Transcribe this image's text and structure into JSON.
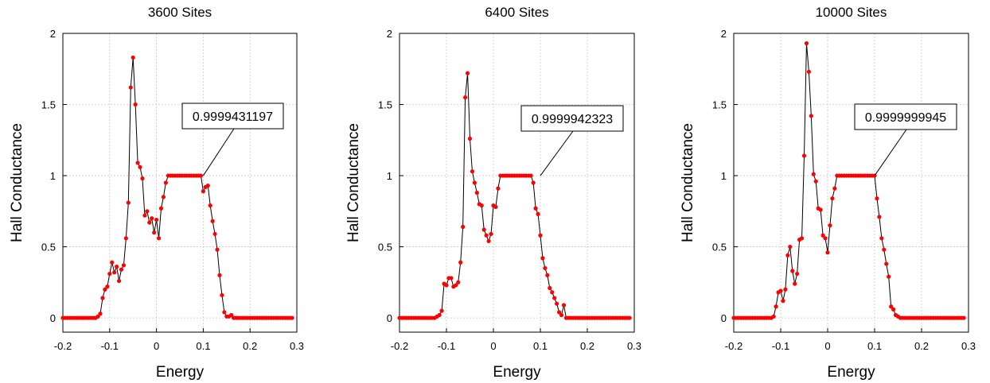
{
  "chart_data": [
    {
      "type": "line",
      "title": "3600 Sites",
      "xlabel": "Energy",
      "ylabel": "Hall Conductance",
      "xlim": [
        -0.2,
        0.3
      ],
      "ylim": [
        -0.1,
        2
      ],
      "xticks": [
        "-0.2",
        "-0.1",
        "0",
        "0.1",
        "0.2",
        "0.3"
      ],
      "yticks": [
        "0",
        "0.5",
        "1",
        "1.5",
        "2"
      ],
      "grid": true,
      "annotation": {
        "text": "0.9999431197",
        "x": 0.1,
        "y": 1.0
      },
      "series": [
        {
          "color": "#ff0000",
          "x": [
            -0.2,
            -0.195,
            -0.19,
            -0.185,
            -0.18,
            -0.175,
            -0.17,
            -0.165,
            -0.16,
            -0.155,
            -0.15,
            -0.145,
            -0.14,
            -0.135,
            -0.13,
            -0.125,
            -0.12,
            -0.115,
            -0.11,
            -0.105,
            -0.1,
            -0.095,
            -0.09,
            -0.085,
            -0.08,
            -0.075,
            -0.07,
            -0.065,
            -0.06,
            -0.055,
            -0.05,
            -0.045,
            -0.04,
            -0.035,
            -0.03,
            -0.025,
            -0.02,
            -0.015,
            -0.01,
            -0.005,
            0,
            0.005,
            0.01,
            0.015,
            0.02,
            0.025,
            0.03,
            0.035,
            0.04,
            0.045,
            0.05,
            0.055,
            0.06,
            0.065,
            0.07,
            0.075,
            0.08,
            0.085,
            0.09,
            0.095,
            0.1,
            0.105,
            0.11,
            0.115,
            0.12,
            0.125,
            0.13,
            0.135,
            0.14,
            0.145,
            0.15,
            0.155,
            0.16,
            0.165,
            0.17,
            0.175,
            0.18,
            0.185,
            0.19,
            0.195,
            0.2,
            0.205,
            0.21,
            0.215,
            0.22,
            0.225,
            0.23,
            0.235,
            0.24,
            0.245,
            0.25,
            0.255,
            0.26,
            0.265,
            0.27,
            0.275,
            0.28,
            0.285,
            0.29
          ],
          "y": [
            0,
            0,
            0,
            0,
            0,
            0,
            0,
            0,
            0,
            0,
            0,
            0,
            0,
            0,
            0,
            0.01,
            0.03,
            0.14,
            0.2,
            0.22,
            0.31,
            0.39,
            0.32,
            0.36,
            0.26,
            0.34,
            0.37,
            0.56,
            0.81,
            1.62,
            1.83,
            1.5,
            1.09,
            1.06,
            0.98,
            0.72,
            0.75,
            0.67,
            0.7,
            0.6,
            0.69,
            0.56,
            0.77,
            0.85,
            0.95,
            1,
            1,
            1,
            1,
            1,
            1,
            1,
            1,
            1,
            1,
            1,
            1,
            1,
            1,
            1,
            0.89,
            0.92,
            0.93,
            0.79,
            0.68,
            0.59,
            0.48,
            0.3,
            0.16,
            0.04,
            0.01,
            0.01,
            0.02,
            0,
            0,
            0,
            0,
            0,
            0,
            0,
            0,
            0,
            0,
            0,
            0,
            0,
            0,
            0,
            0,
            0,
            0,
            0,
            0,
            0,
            0,
            0,
            0,
            0,
            0
          ]
        }
      ]
    },
    {
      "type": "line",
      "title": "6400 Sites",
      "xlabel": "Energy",
      "ylabel": "Hall Conductance",
      "xlim": [
        -0.2,
        0.3
      ],
      "ylim": [
        -0.1,
        2
      ],
      "xticks": [
        "-0.2",
        "-0.1",
        "0",
        "0.1",
        "0.2",
        "0.3"
      ],
      "yticks": [
        "0",
        "0.5",
        "1",
        "1.5",
        "2"
      ],
      "grid": true,
      "annotation": {
        "text": "0.9999942323",
        "x": 0.1,
        "y": 1.0
      },
      "series": [
        {
          "color": "#ff0000",
          "x": [
            -0.2,
            -0.195,
            -0.19,
            -0.185,
            -0.18,
            -0.175,
            -0.17,
            -0.165,
            -0.16,
            -0.155,
            -0.15,
            -0.145,
            -0.14,
            -0.135,
            -0.13,
            -0.125,
            -0.12,
            -0.115,
            -0.11,
            -0.105,
            -0.1,
            -0.095,
            -0.09,
            -0.085,
            -0.08,
            -0.075,
            -0.07,
            -0.065,
            -0.06,
            -0.055,
            -0.05,
            -0.045,
            -0.04,
            -0.035,
            -0.03,
            -0.025,
            -0.02,
            -0.015,
            -0.01,
            -0.005,
            0,
            0.005,
            0.01,
            0.015,
            0.02,
            0.025,
            0.03,
            0.035,
            0.04,
            0.045,
            0.05,
            0.055,
            0.06,
            0.065,
            0.07,
            0.075,
            0.08,
            0.085,
            0.09,
            0.095,
            0.1,
            0.105,
            0.11,
            0.115,
            0.12,
            0.125,
            0.13,
            0.135,
            0.14,
            0.145,
            0.15,
            0.155,
            0.16,
            0.165,
            0.17,
            0.175,
            0.18,
            0.185,
            0.19,
            0.195,
            0.2,
            0.205,
            0.21,
            0.215,
            0.22,
            0.225,
            0.23,
            0.235,
            0.24,
            0.245,
            0.25,
            0.255,
            0.26,
            0.265,
            0.27,
            0.275,
            0.28,
            0.285,
            0.29
          ],
          "y": [
            0,
            0,
            0,
            0,
            0,
            0,
            0,
            0,
            0,
            0,
            0,
            0,
            0,
            0,
            0,
            0,
            0.01,
            0.02,
            0.05,
            0.24,
            0.23,
            0.28,
            0.28,
            0.22,
            0.23,
            0.25,
            0.39,
            0.64,
            1.55,
            1.72,
            1.26,
            1.03,
            0.95,
            0.88,
            0.8,
            0.79,
            0.62,
            0.58,
            0.54,
            0.59,
            0.79,
            0.78,
            0.91,
            1,
            1,
            1,
            1,
            1,
            1,
            1,
            1,
            1,
            1,
            1,
            1,
            1,
            1,
            0.95,
            0.77,
            0.73,
            0.58,
            0.42,
            0.35,
            0.3,
            0.21,
            0.18,
            0.14,
            0.1,
            0.04,
            0.02,
            0.09,
            0,
            0,
            0,
            0,
            0,
            0,
            0,
            0,
            0,
            0,
            0,
            0,
            0,
            0,
            0,
            0,
            0,
            0,
            0,
            0,
            0,
            0,
            0,
            0,
            0,
            0,
            0,
            0
          ]
        }
      ]
    },
    {
      "type": "line",
      "title": "10000 Sites",
      "xlabel": "Energy",
      "ylabel": "Hall Conductance",
      "xlim": [
        -0.2,
        0.3
      ],
      "ylim": [
        -0.1,
        2
      ],
      "xticks": [
        "-0.2",
        "-0.1",
        "0",
        "0.1",
        "0.2",
        "0.3"
      ],
      "yticks": [
        "0",
        "0.5",
        "1",
        "1.5",
        "2"
      ],
      "grid": true,
      "annotation": {
        "text": "0.9999999945",
        "x": 0.1,
        "y": 1.0
      },
      "series": [
        {
          "color": "#ff0000",
          "x": [
            -0.2,
            -0.195,
            -0.19,
            -0.185,
            -0.18,
            -0.175,
            -0.17,
            -0.165,
            -0.16,
            -0.155,
            -0.15,
            -0.145,
            -0.14,
            -0.135,
            -0.13,
            -0.125,
            -0.12,
            -0.115,
            -0.11,
            -0.105,
            -0.1,
            -0.095,
            -0.09,
            -0.085,
            -0.08,
            -0.075,
            -0.07,
            -0.065,
            -0.06,
            -0.055,
            -0.05,
            -0.045,
            -0.04,
            -0.035,
            -0.03,
            -0.025,
            -0.02,
            -0.015,
            -0.01,
            -0.005,
            0,
            0.005,
            0.01,
            0.015,
            0.02,
            0.025,
            0.03,
            0.035,
            0.04,
            0.045,
            0.05,
            0.055,
            0.06,
            0.065,
            0.07,
            0.075,
            0.08,
            0.085,
            0.09,
            0.095,
            0.1,
            0.105,
            0.11,
            0.115,
            0.12,
            0.125,
            0.13,
            0.135,
            0.14,
            0.145,
            0.15,
            0.155,
            0.16,
            0.165,
            0.17,
            0.175,
            0.18,
            0.185,
            0.19,
            0.195,
            0.2,
            0.205,
            0.21,
            0.215,
            0.22,
            0.225,
            0.23,
            0.235,
            0.24,
            0.245,
            0.25,
            0.255,
            0.26,
            0.265,
            0.27,
            0.275,
            0.28,
            0.285,
            0.29
          ],
          "y": [
            0,
            0,
            0,
            0,
            0,
            0,
            0,
            0,
            0,
            0,
            0,
            0,
            0,
            0,
            0,
            0,
            0,
            0.01,
            0.08,
            0.18,
            0.19,
            0.12,
            0.2,
            0.44,
            0.5,
            0.33,
            0.24,
            0.31,
            0.55,
            0.56,
            1.14,
            1.93,
            1.73,
            1.42,
            1.01,
            0.96,
            0.77,
            0.76,
            0.58,
            0.56,
            0.46,
            0.65,
            0.84,
            0.91,
            1,
            1,
            1,
            1,
            1,
            1,
            1,
            1,
            1,
            1,
            1,
            1,
            1,
            1,
            1,
            1,
            1,
            0.84,
            0.71,
            0.56,
            0.48,
            0.38,
            0.29,
            0.08,
            0.06,
            0.02,
            0.01,
            0,
            0,
            0,
            0,
            0,
            0,
            0,
            0,
            0,
            0,
            0,
            0,
            0,
            0,
            0,
            0,
            0,
            0,
            0,
            0,
            0,
            0,
            0,
            0,
            0,
            0,
            0,
            0
          ]
        }
      ]
    }
  ]
}
